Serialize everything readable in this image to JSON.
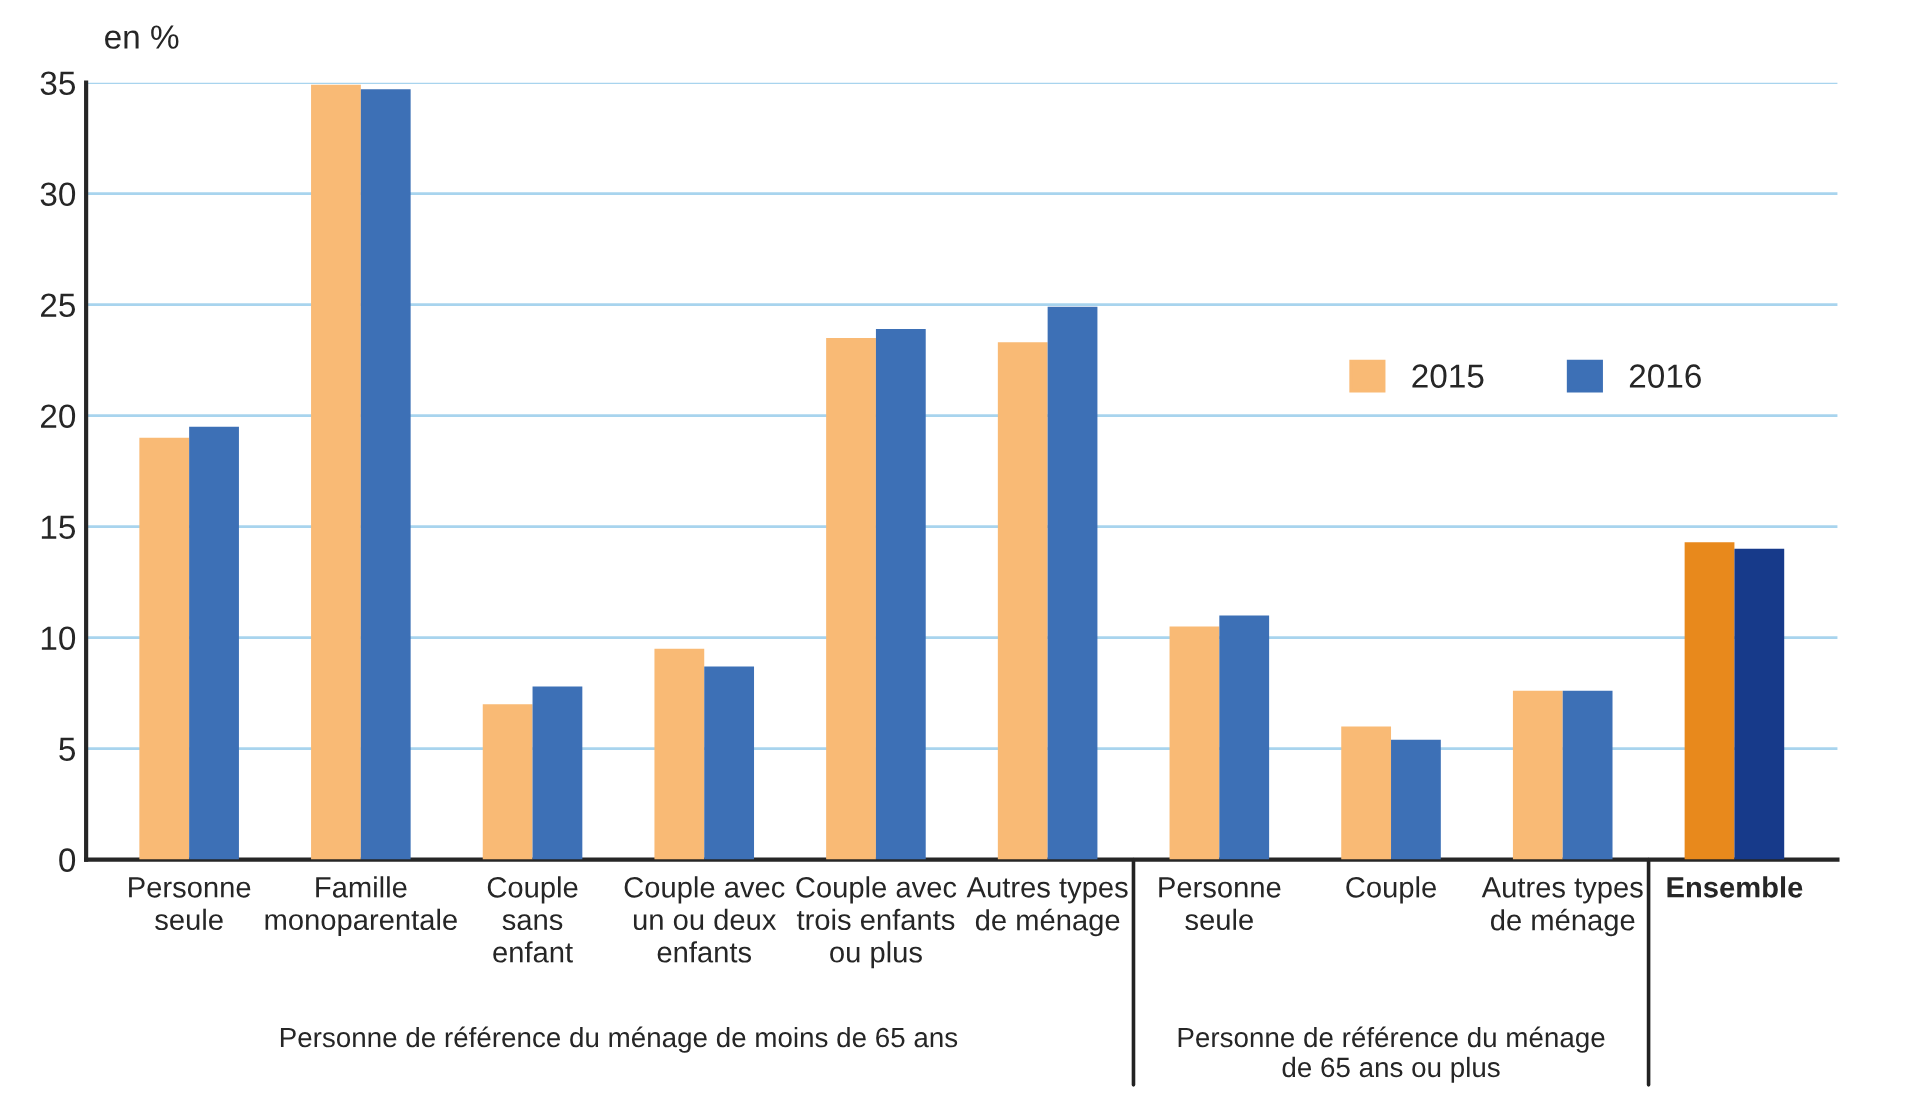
{
  "chart_data": {
    "type": "bar",
    "ylabel": "en %",
    "categories": [
      "Personne\nseule",
      "Famille\nmonoparentale",
      "Couple\nsans\nenfant",
      "Couple avec\nun ou deux\nenfants",
      "Couple avec\ntrois enfants\nou plus",
      "Autres types\nde ménage",
      "Personne\nseule",
      "Couple",
      "Autres types\nde ménage",
      "Ensemble"
    ],
    "series": [
      {
        "name": "2015",
        "color": "#f9ba75",
        "colors": [
          "#f9ba75",
          "#f9ba75",
          "#f9ba75",
          "#f9ba75",
          "#f9ba75",
          "#f9ba75",
          "#f9ba75",
          "#f9ba75",
          "#f9ba75",
          "#e8891c"
        ],
        "values": [
          19.0,
          34.9,
          7.0,
          9.5,
          23.5,
          23.3,
          10.5,
          6.0,
          7.6,
          14.3
        ]
      },
      {
        "name": "2016",
        "color": "#3d70b6",
        "colors": [
          "#3d70b6",
          "#3d70b6",
          "#3d70b6",
          "#3d70b6",
          "#3d70b6",
          "#3d70b6",
          "#3d70b6",
          "#3d70b6",
          "#3d70b6",
          "#173a8a"
        ],
        "values": [
          19.5,
          34.7,
          7.8,
          8.7,
          23.9,
          24.9,
          11.0,
          5.4,
          7.6,
          14.0
        ]
      }
    ],
    "ylim": [
      0,
      35
    ],
    "yticks": [
      0,
      5,
      10,
      15,
      20,
      25,
      30,
      35
    ],
    "grid": "y",
    "legend": "right",
    "annotations": [
      "Personne de référence du ménage de moins de 65 ans",
      "Personne de référence du ménage\nde 65 ans ou plus"
    ]
  }
}
